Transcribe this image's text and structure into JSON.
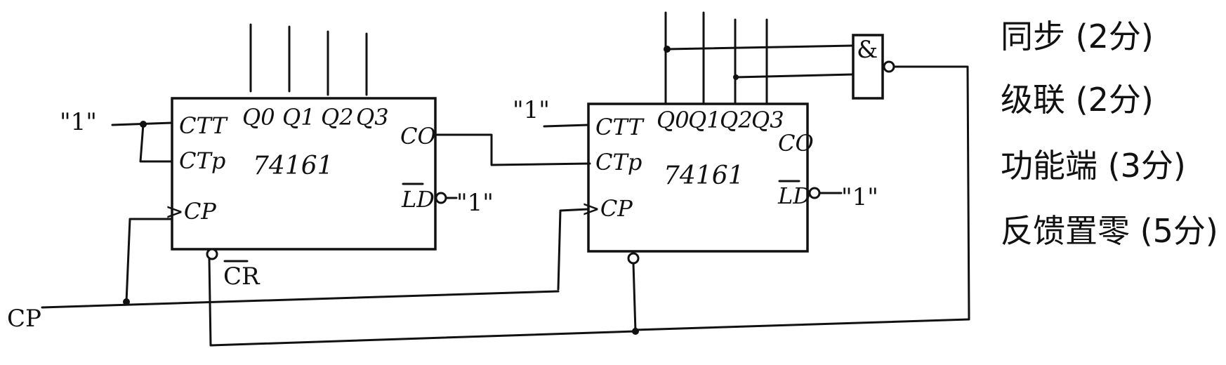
{
  "chips": [
    {
      "part": "74161",
      "inputs": {
        "ctt": "CTT",
        "ctp": "CTp",
        "cp": ">CP"
      },
      "outputs": [
        "Q0",
        "Q1",
        "Q2",
        "Q3"
      ],
      "co": "CO",
      "ld": "LD",
      "cr": "CR",
      "ld_tie": "\"1\""
    },
    {
      "part": "74161",
      "inputs": {
        "ctt": "CTT",
        "ctp": "CTp",
        "cp": ">CP"
      },
      "outputs": [
        "Q0",
        "Q1",
        "Q2",
        "Q3"
      ],
      "co": "CO",
      "ld": "LD",
      "ld_tie": "\"1\""
    }
  ],
  "inputs": {
    "logic_high_1": "\"1\"",
    "logic_high_2": "\"1\"",
    "clock": "CP"
  },
  "gate": {
    "label": "&"
  },
  "notes": [
    "同步 (2分)",
    "级联 (2分)",
    "功能端 (3分)",
    "反馈置零 (5分)"
  ]
}
